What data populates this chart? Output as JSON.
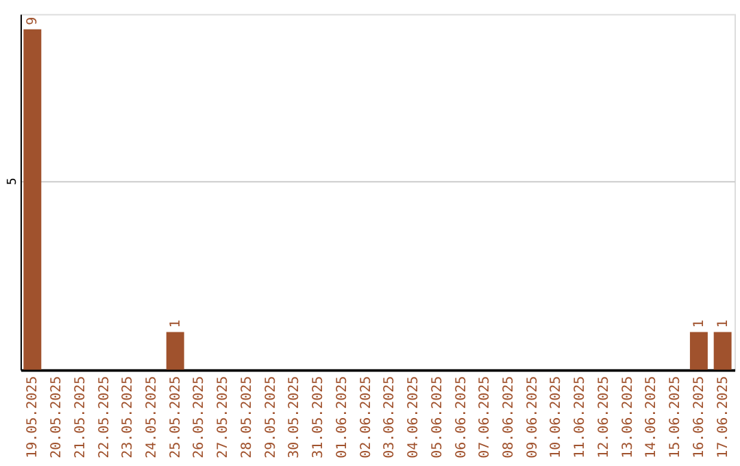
{
  "chart_data": {
    "type": "bar",
    "categories": [
      "19.05.2025",
      "20.05.2025",
      "21.05.2025",
      "22.05.2025",
      "23.05.2025",
      "24.05.2025",
      "25.05.2025",
      "26.05.2025",
      "27.05.2025",
      "28.05.2025",
      "29.05.2025",
      "30.05.2025",
      "31.05.2025",
      "01.06.2025",
      "02.06.2025",
      "03.06.2025",
      "04.06.2025",
      "05.06.2025",
      "06.06.2025",
      "07.06.2025",
      "08.06.2025",
      "09.06.2025",
      "10.06.2025",
      "11.06.2025",
      "12.06.2025",
      "13.06.2025",
      "14.06.2025",
      "15.06.2025",
      "16.06.2025",
      "17.06.2025"
    ],
    "values": [
      9,
      0,
      0,
      0,
      0,
      0,
      1,
      0,
      0,
      0,
      0,
      0,
      0,
      0,
      0,
      0,
      0,
      0,
      0,
      0,
      0,
      0,
      0,
      0,
      0,
      0,
      0,
      0,
      1,
      1
    ],
    "value_labels": [
      "9",
      null,
      null,
      null,
      null,
      null,
      "1",
      null,
      null,
      null,
      null,
      null,
      null,
      null,
      null,
      null,
      null,
      null,
      null,
      null,
      null,
      null,
      null,
      null,
      null,
      null,
      null,
      null,
      "1",
      "1"
    ],
    "color": "#a0522d",
    "ylim": [
      0,
      9.4
    ],
    "yticks": [
      {
        "value": 0,
        "label": null
      },
      5
    ],
    "grid": "y"
  }
}
